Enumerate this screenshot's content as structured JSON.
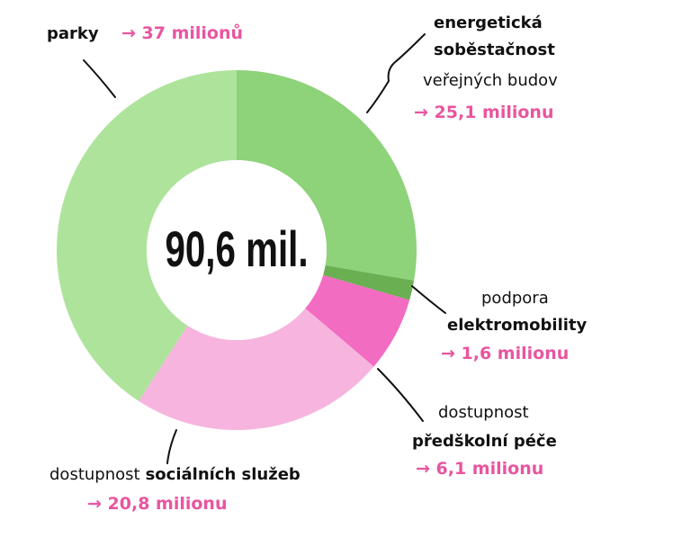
{
  "chart_data": {
    "type": "donut",
    "center_label": "90,6 mil.",
    "categories": [
      [
        [
          "energetická"
        ],
        [
          "soběstačnost"
        ],
        [
          "veřejných budov"
        ]
      ],
      [
        [
          "podpora"
        ],
        [
          "elektromobility"
        ]
      ],
      [
        [
          "dostupnost"
        ],
        [
          "předškolní péče"
        ]
      ],
      [
        [
          "dostupnost",
          "sociálních služeb"
        ]
      ],
      [
        [
          "parky"
        ]
      ]
    ],
    "values": [
      25.1,
      1.6,
      6.1,
      20.8,
      37
    ],
    "value_labels": [
      "→ 25,1 milionu",
      "→ 1,6 milionu",
      "→ 6,1 milionu",
      "→ 20,8 milionu",
      "→ 37 milionů"
    ],
    "colors": [
      "#8ed27a",
      "#6aaf52",
      "#f26cc2",
      "#f6b4de",
      "#aee39c"
    ]
  }
}
